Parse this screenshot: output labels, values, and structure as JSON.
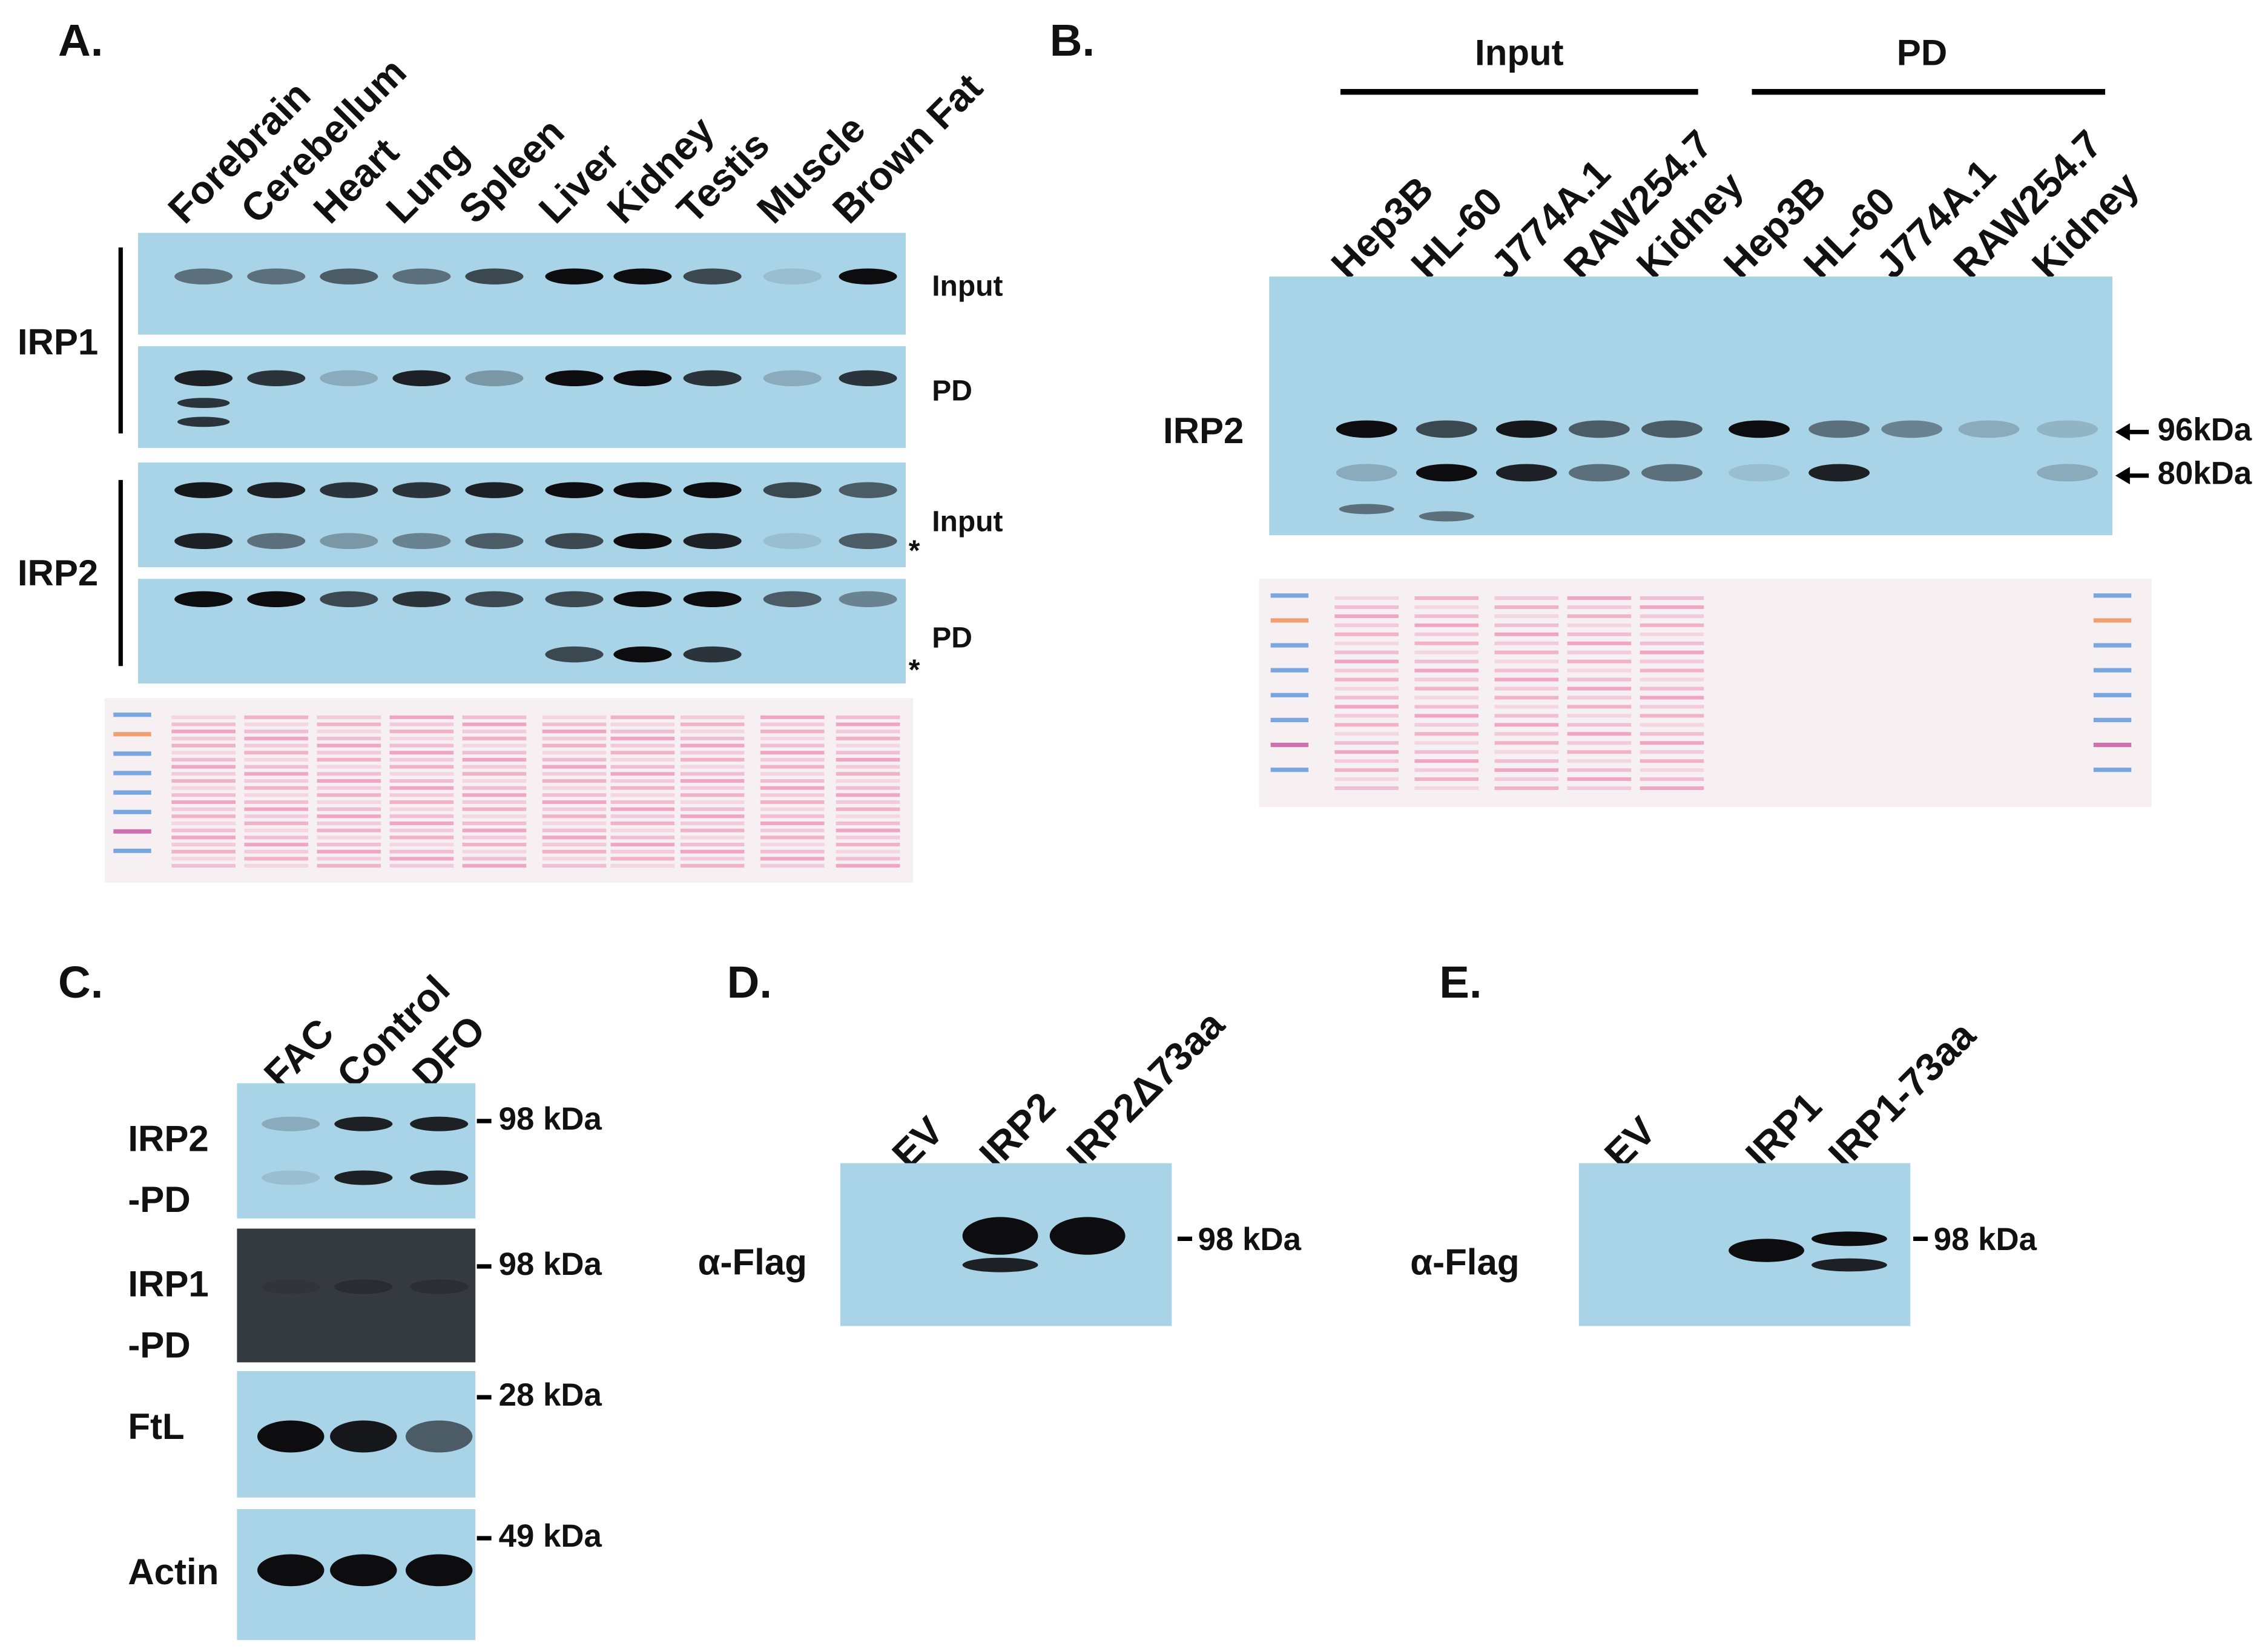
{
  "panel_a": {
    "label": "A.",
    "lanes": [
      "Forebrain",
      "Cerebellum",
      "Heart",
      "Lung",
      "Spleen",
      "Liver",
      "Kidney",
      "Testis",
      "Muscle",
      "Brown Fat"
    ],
    "row_labels": [
      "IRP1",
      "IRP2"
    ],
    "blot_labels": [
      "Input",
      "PD",
      "Input",
      "PD"
    ],
    "asterisks": [
      "*",
      "*"
    ]
  },
  "panel_b": {
    "label": "B.",
    "groups": [
      "Input",
      "PD"
    ],
    "lanes": [
      "Hep3B",
      "HL-60",
      "J774A.1",
      "RAW254.7",
      "Kidney",
      "Hep3B",
      "HL-60",
      "J774A.1",
      "RAW254.7",
      "Kidney"
    ],
    "row_label": "IRP2",
    "markers": [
      "96kDa",
      "80kDa"
    ]
  },
  "panel_c": {
    "label": "C.",
    "lanes": [
      "FAC",
      "Control",
      "DFO"
    ],
    "rows": [
      {
        "label": [
          "IRP2",
          "-PD"
        ],
        "marker": "98 kDa"
      },
      {
        "label": [
          "IRP1",
          "-PD"
        ],
        "marker": "98 kDa"
      },
      {
        "label": [
          "FtL"
        ],
        "marker": "28 kDa"
      },
      {
        "label": [
          "Actin"
        ],
        "marker": "49 kDa"
      }
    ]
  },
  "panel_d": {
    "label": "D.",
    "lanes": [
      "EV",
      "IRP2",
      "IRP2Δ73aa"
    ],
    "row_label": "α-Flag",
    "marker": "98 kDa"
  },
  "panel_e": {
    "label": "E.",
    "lanes": [
      "EV",
      "IRP1",
      "IRP1-73aa"
    ],
    "row_label": "α-Flag",
    "marker": "98 kDa"
  }
}
